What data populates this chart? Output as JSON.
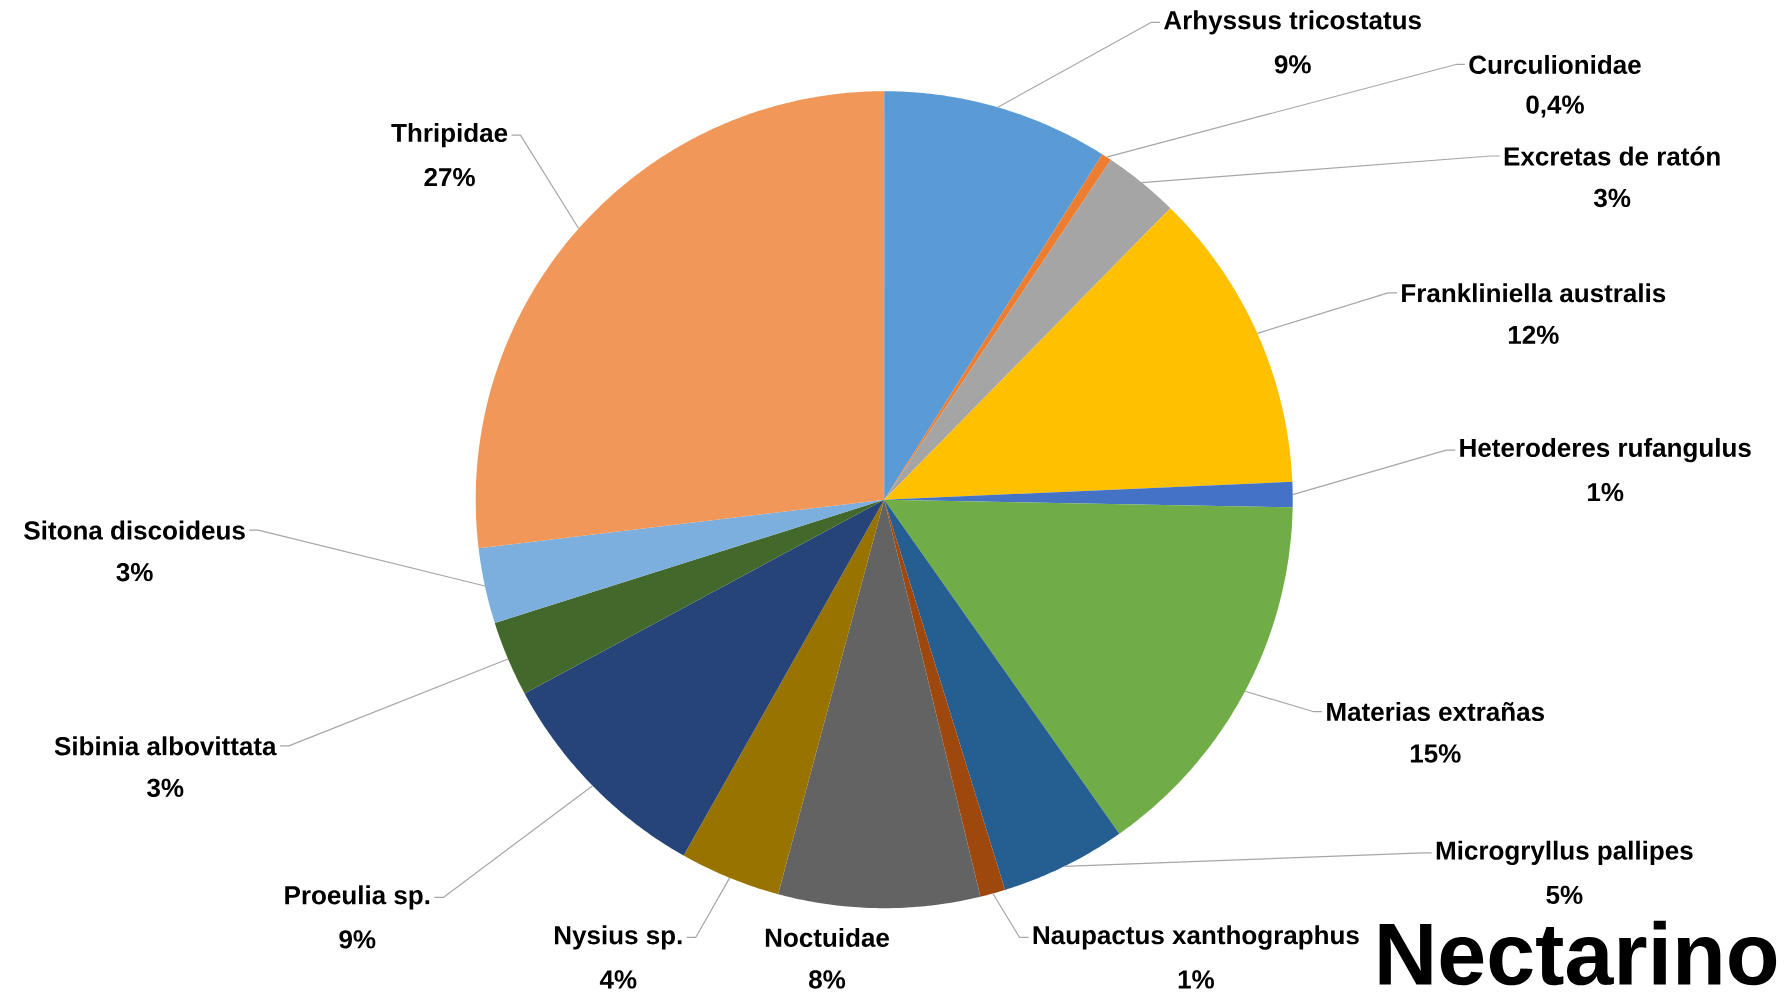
{
  "chart_data": {
    "type": "pie",
    "title": "Nectarino",
    "categories": [
      "Arhyssus tricostatus",
      "Curculionidae",
      "Excretas de ratón",
      "Frankliniella australis",
      "Heteroderes rufangulus",
      "Materias extrañas",
      "Microgryllus pallipes",
      "Naupactus xanthographus",
      "Noctuidae",
      "Nysius sp.",
      "Proeulia sp.",
      "Sibinia albovittata",
      "Sitona discoideus",
      "Thripidae"
    ],
    "values": [
      9,
      0.4,
      3,
      12,
      1,
      15,
      5,
      1,
      8,
      4,
      9,
      3,
      3,
      27
    ],
    "value_labels": [
      "9%",
      "0,4%",
      "3%",
      "12%",
      "1%",
      "15%",
      "5%",
      "1%",
      "8%",
      "4%",
      "9%",
      "3%",
      "3%",
      "27%"
    ],
    "colors": [
      "#5b9bd5",
      "#ed7d31",
      "#a5a5a5",
      "#ffc000",
      "#4472c4",
      "#70ad47",
      "#255e91",
      "#9e480e",
      "#636363",
      "#997300",
      "#264478",
      "#43682b",
      "#7cafdd",
      "#f1975a"
    ]
  }
}
